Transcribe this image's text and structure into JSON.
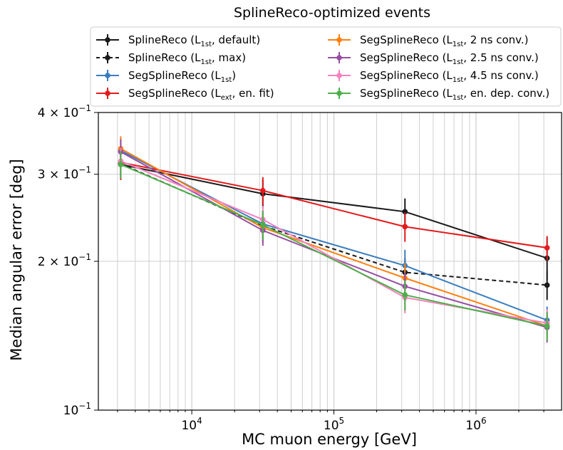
{
  "chart_data": {
    "type": "line",
    "title": "SplineReco-optimized events",
    "xlabel": "MC muon energy [GeV]",
    "ylabel": "Median angular error [deg]",
    "xscale": "log",
    "yscale": "log",
    "xlim": [
      2200,
      4000000
    ],
    "ylim": [
      0.1,
      0.4
    ],
    "grid": "x major and minor, y major",
    "legend_placement": "above plot, two columns",
    "x_ticks": [
      {
        "value": 10000,
        "base": "10",
        "exp": "4"
      },
      {
        "value": 100000,
        "base": "10",
        "exp": "5"
      },
      {
        "value": 1000000,
        "base": "10",
        "exp": "6"
      }
    ],
    "y_ticks": [
      {
        "value": 0.1,
        "mant": "",
        "base": "10",
        "exp": "−1"
      },
      {
        "value": 0.2,
        "mant": "2 × ",
        "base": "10",
        "exp": "−1"
      },
      {
        "value": 0.3,
        "mant": "3 × ",
        "base": "10",
        "exp": "−1"
      },
      {
        "value": 0.4,
        "mant": "4 × ",
        "base": "10",
        "exp": "−1"
      }
    ],
    "x": [
      3162,
      31623,
      316228,
      3162278
    ],
    "series": [
      {
        "legend": {
          "pre": "SplineReco (L",
          "sub": "1st",
          "post": ", default)"
        },
        "color": "#1a1a1a",
        "dashed": false,
        "values": [
          0.314,
          0.274,
          0.252,
          0.203
        ],
        "errors": [
          0.02,
          0.018,
          0.016,
          0.02
        ]
      },
      {
        "legend": {
          "pre": "SplineReco (L",
          "sub": "1st",
          "post": ", max)"
        },
        "color": "#1a1a1a",
        "dashed": true,
        "values": [
          0.315,
          0.236,
          0.19,
          0.179
        ],
        "errors": [
          0.018,
          0.016,
          0.013,
          0.012
        ]
      },
      {
        "legend": {
          "pre": "SegSplineReco (L",
          "sub": "1st",
          "post": ")"
        },
        "color": "#3a7dbf",
        "dashed": false,
        "values": [
          0.335,
          0.238,
          0.196,
          0.152
        ],
        "errors": [
          0.02,
          0.016,
          0.015,
          0.01
        ]
      },
      {
        "legend": {
          "pre": "SegSplineReco (L",
          "sub": "ext",
          "post": ", en. fit)"
        },
        "color": "#e41a1c",
        "dashed": false,
        "values": [
          0.317,
          0.278,
          0.235,
          0.213
        ],
        "errors": [
          0.025,
          0.018,
          0.016,
          0.012
        ]
      },
      {
        "legend": {
          "pre": "SegSplineReco (L",
          "sub": "1st",
          "post": ", 2 ns conv.)"
        },
        "color": "#ff7f0e",
        "dashed": false,
        "values": [
          0.338,
          0.234,
          0.185,
          0.148
        ],
        "errors": [
          0.02,
          0.016,
          0.013,
          0.01
        ]
      },
      {
        "legend": {
          "pre": "SegSplineReco (L",
          "sub": "1st",
          "post": ", 2.5 ns conv.)"
        },
        "color": "#984ea3",
        "dashed": false,
        "values": [
          0.333,
          0.231,
          0.178,
          0.147
        ],
        "errors": [
          0.02,
          0.016,
          0.012,
          0.01
        ]
      },
      {
        "legend": {
          "pre": "SegSplineReco (L",
          "sub": "1st",
          "post": ", 4.5 ns conv.)"
        },
        "color": "#f781bf",
        "dashed": false,
        "values": [
          0.319,
          0.243,
          0.169,
          0.15
        ],
        "errors": [
          0.02,
          0.016,
          0.012,
          0.01
        ]
      },
      {
        "legend": {
          "pre": "SegSplineReco (L",
          "sub": "1st",
          "post": ", en. dep. conv.)"
        },
        "color": "#4daf4a",
        "dashed": false,
        "values": [
          0.314,
          0.237,
          0.171,
          0.148
        ],
        "errors": [
          0.02,
          0.016,
          0.012,
          0.01
        ]
      }
    ]
  }
}
